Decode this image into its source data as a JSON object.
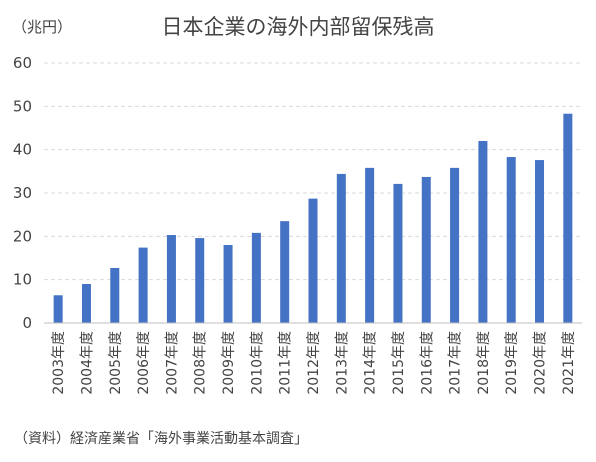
{
  "chart_data": {
    "type": "bar",
    "title": "日本企業の海外内部留保残高",
    "unit_label": "（兆円）",
    "source": "（資料）経済産業省「海外事業活動基本調査」",
    "categories": [
      "2003年度",
      "2004年度",
      "2005年度",
      "2006年度",
      "2007年度",
      "2008年度",
      "2009年度",
      "2010年度",
      "2011年度",
      "2012年度",
      "2013年度",
      "2014年度",
      "2015年度",
      "2016年度",
      "2017年度",
      "2018年度",
      "2019年度",
      "2020年度",
      "2021年度"
    ],
    "values": [
      6.4,
      9.0,
      12.7,
      17.4,
      20.3,
      19.6,
      18.0,
      20.8,
      23.5,
      28.7,
      34.4,
      35.8,
      32.1,
      33.7,
      35.8,
      42.0,
      38.3,
      37.6,
      48.3
    ],
    "ylim": [
      0,
      60
    ],
    "yticks": [
      0,
      10,
      20,
      30,
      40,
      50,
      60
    ],
    "grid": true,
    "legend": "none",
    "bar_color": "#4472c4"
  }
}
